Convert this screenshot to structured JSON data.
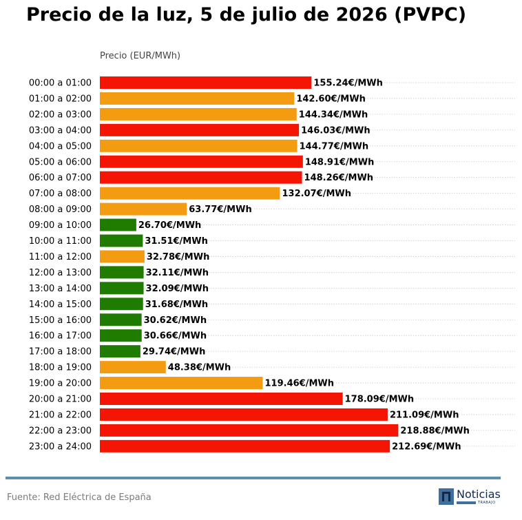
{
  "page": {
    "title": "Precio de la luz, 5 de julio de 2026 (PVPC)",
    "source": "Fuente: Red Eléctrica de España",
    "brand": {
      "name": "Noticias",
      "sub": "TRABAJO"
    }
  },
  "chart_data": {
    "type": "bar",
    "orientation": "horizontal",
    "title": "Precio de la luz, 5 de julio de 2026 (PVPC)",
    "xlabel": "Precio (EUR/MWh)",
    "ylabel": "",
    "value_suffix": "€/MWh",
    "xlim": [
      0,
      240
    ],
    "grid": true,
    "categories": [
      "00:00 a 01:00",
      "01:00 a 02:00",
      "02:00 a 03:00",
      "03:00 a 04:00",
      "04:00 a 05:00",
      "05:00 a 06:00",
      "06:00 a 07:00",
      "07:00 a 08:00",
      "08:00 a 09:00",
      "09:00 a 10:00",
      "10:00 a 11:00",
      "11:00 a 12:00",
      "12:00 a 13:00",
      "13:00 a 14:00",
      "14:00 a 15:00",
      "15:00 a 16:00",
      "16:00 a 17:00",
      "17:00 a 18:00",
      "18:00 a 19:00",
      "19:00 a 20:00",
      "20:00 a 21:00",
      "21:00 a 22:00",
      "22:00 a 23:00",
      "23:00 a 24:00"
    ],
    "values": [
      155.24,
      142.6,
      144.34,
      146.03,
      144.77,
      148.91,
      148.26,
      132.07,
      63.77,
      26.7,
      31.51,
      32.78,
      32.11,
      32.09,
      31.68,
      30.62,
      30.66,
      29.74,
      48.38,
      119.46,
      178.09,
      211.09,
      218.88,
      212.69
    ],
    "value_labels": [
      "155.24€/MWh",
      "142.60€/MWh",
      "144.34€/MWh",
      "146.03€/MWh",
      "144.77€/MWh",
      "148.91€/MWh",
      "148.26€/MWh",
      "132.07€/MWh",
      "63.77€/MWh",
      "26.70€/MWh",
      "31.51€/MWh",
      "32.78€/MWh",
      "32.11€/MWh",
      "32.09€/MWh",
      "31.68€/MWh",
      "30.62€/MWh",
      "30.66€/MWh",
      "29.74€/MWh",
      "48.38€/MWh",
      "119.46€/MWh",
      "178.09€/MWh",
      "211.09€/MWh",
      "218.88€/MWh",
      "212.69€/MWh"
    ],
    "bar_levels": [
      "high",
      "mid",
      "mid",
      "high",
      "mid",
      "high",
      "high",
      "mid",
      "mid",
      "low",
      "low",
      "mid",
      "low",
      "low",
      "low",
      "low",
      "low",
      "low",
      "mid",
      "mid",
      "high",
      "high",
      "high",
      "high"
    ],
    "colors": {
      "high": "#f51505",
      "mid": "#f39c12",
      "low": "#1f7c00"
    }
  }
}
